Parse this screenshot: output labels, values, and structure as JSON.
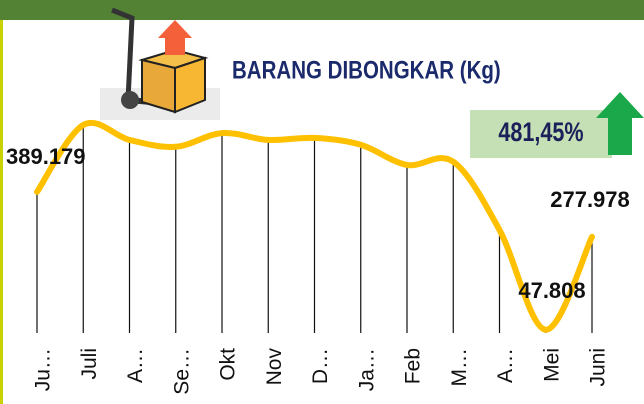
{
  "chart_data": {
    "type": "line",
    "title": "BARANG DIBONGKAR (Kg)",
    "annotation": "481,45%",
    "categories": [
      "Ju…",
      "Juli",
      "A…",
      "Se…",
      "Okt",
      "Nov",
      "D…",
      "Ja…",
      "Feb",
      "M…",
      "A…",
      "Mei",
      "Juni"
    ],
    "values": [
      389179,
      555000,
      518000,
      501000,
      535000,
      518000,
      523000,
      506000,
      456000,
      464000,
      295000,
      47808,
      277978
    ],
    "value_labels": [
      "389.179",
      null,
      null,
      null,
      null,
      null,
      null,
      null,
      null,
      null,
      null,
      "47.808",
      "277.978"
    ],
    "color": "#ffc000"
  }
}
